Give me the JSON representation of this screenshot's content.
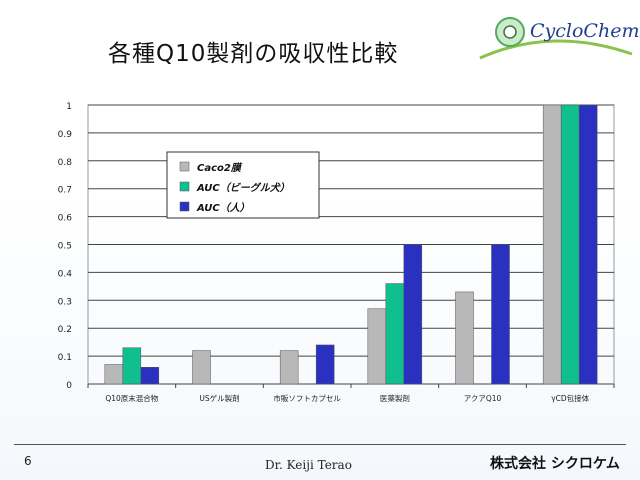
{
  "slide": {
    "title": "各種Q10製剤の吸収性比較",
    "logo_text": "CycloChem",
    "page_number": "6",
    "author": "Dr. Keiji Terao",
    "company": "株式会社 シクロケム"
  },
  "colors": {
    "caco2": "#b8b8b8",
    "auc_dog": "#0fbf8f",
    "auc_human": "#2a30c0"
  },
  "chart_data": {
    "type": "bar",
    "title": "",
    "xlabel": "",
    "ylabel": "",
    "ylim": [
      0,
      1
    ],
    "yticks": [
      "0",
      "0.1",
      "0.2",
      "0.3",
      "0.4",
      "0.5",
      "0.6",
      "0.7",
      "0.8",
      "0.9",
      "1"
    ],
    "categories": [
      "Q10原末混合物",
      "USゲル製剤",
      "市販ソフトカプセル",
      "医薬製剤",
      "アクアQ10",
      "γCD包接体"
    ],
    "legend_position": "top-left",
    "series": [
      {
        "name": "Caco2膜",
        "color_key": "caco2",
        "values": [
          0.07,
          0.12,
          0.12,
          0.27,
          0.33,
          1.0
        ]
      },
      {
        "name": "AUC（ビーグル犬）",
        "color_key": "auc_dog",
        "values": [
          0.13,
          null,
          null,
          0.36,
          null,
          1.0
        ]
      },
      {
        "name": "AUC（人）",
        "color_key": "auc_human",
        "values": [
          0.06,
          null,
          0.14,
          0.5,
          0.5,
          1.0
        ]
      }
    ]
  }
}
